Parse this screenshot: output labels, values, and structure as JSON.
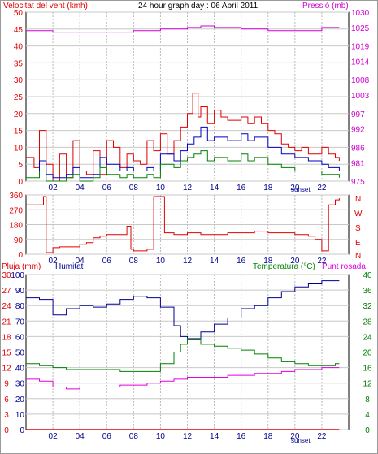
{
  "header": {
    "wind_label": "Velocitat del vent (kmh)",
    "title": "24 hour graph day : 06 Abril 2011",
    "pressure_label": "Pressió (mb)"
  },
  "labels": {
    "sunset": "sunset",
    "rain_label": "Pluja (mm)",
    "humidity_label": "Humitat",
    "temp_label": "Temperatura (°C)",
    "dew_label": "Punt rosada",
    "compass": [
      "N",
      "W",
      "S",
      "E",
      "N"
    ]
  },
  "colors": {
    "wind": "#e00000",
    "gust": "#e00000",
    "avg_wind": "#0000c0",
    "wind_green": "#008000",
    "pressure": "#d000d0",
    "direction": "#e00000",
    "humidity": "#000090",
    "temperature": "#008000",
    "dew": "#e000e0",
    "rain": "#e00000",
    "grid": "#c8c8c8",
    "dashed_grid": "#b8b8b8"
  },
  "chart_data": [
    {
      "type": "line",
      "title": "24 hour graph day : 06 Abril 2011",
      "x_ticks": [
        "02",
        "04",
        "06",
        "08",
        "10",
        "12",
        "14",
        "16",
        "18",
        "20",
        "22"
      ],
      "y_left_label": "Velocitat del vent (kmh)",
      "y_left_ticks": [
        0,
        5,
        10,
        15,
        20,
        25,
        30,
        35,
        40,
        45,
        50
      ],
      "ylim_left": [
        0,
        50
      ],
      "y_right_label": "Pressió (mb)",
      "y_right_ticks": [
        975,
        981,
        986,
        992,
        997,
        1003,
        1008,
        1014,
        1019,
        1025,
        1030
      ],
      "ylim_right": [
        975,
        1030
      ],
      "series": [
        {
          "name": "gust",
          "axis": "left",
          "x": [
            0.0,
            0.6,
            1.0,
            1.5,
            2.0,
            2.5,
            3.0,
            3.5,
            4.0,
            4.5,
            5.0,
            5.5,
            6.0,
            6.5,
            7.0,
            7.5,
            8.0,
            8.5,
            9.0,
            9.5,
            10.0,
            10.5,
            11.0,
            11.5,
            12.0,
            12.4,
            12.8,
            13.0,
            13.5,
            14.0,
            14.5,
            15.0,
            15.5,
            16.0,
            16.5,
            17.0,
            17.5,
            18.0,
            18.5,
            19.0,
            19.5,
            20.0,
            20.5,
            21.0,
            21.5,
            22.0,
            22.5,
            23.0,
            23.3
          ],
          "values": [
            7,
            4,
            15,
            5,
            0,
            8,
            1,
            12,
            3,
            2,
            9,
            2,
            12,
            10,
            4,
            8,
            6,
            5,
            12,
            9,
            14,
            8,
            12,
            16,
            20,
            26,
            19,
            22,
            17,
            21,
            19,
            18,
            18,
            19,
            17,
            19,
            17,
            15,
            14,
            11,
            10,
            9,
            10,
            8,
            8,
            10,
            8,
            7,
            6
          ]
        },
        {
          "name": "average",
          "axis": "left",
          "x": [
            0.0,
            1.0,
            1.5,
            2.0,
            3.0,
            3.5,
            4.0,
            5.0,
            5.5,
            6.0,
            7.0,
            7.5,
            8.0,
            9.0,
            9.5,
            10.0,
            11.0,
            11.5,
            12.0,
            12.5,
            13.0,
            13.5,
            14.0,
            15.0,
            16.0,
            16.5,
            17.0,
            18.0,
            19.0,
            20.0,
            21.0,
            22.0,
            22.5,
            23.0,
            23.3
          ],
          "values": [
            3,
            6,
            2,
            1,
            2,
            4,
            1,
            2,
            7,
            5,
            3,
            4,
            3,
            4,
            3,
            8,
            6,
            9,
            11,
            13,
            16,
            12,
            13,
            12,
            14,
            12,
            13,
            10,
            8,
            7,
            6,
            5,
            4,
            4,
            3
          ]
        },
        {
          "name": "wind-green",
          "axis": "left",
          "x": [
            0.0,
            1.0,
            1.5,
            2.0,
            3.0,
            3.5,
            4.0,
            5.0,
            5.5,
            6.0,
            7.0,
            7.5,
            8.0,
            9.0,
            9.5,
            10.0,
            11.0,
            11.5,
            12.0,
            12.5,
            13.0,
            13.5,
            14.0,
            15.0,
            16.0,
            16.5,
            17.0,
            18.0,
            19.0,
            20.0,
            21.0,
            22.0,
            22.5,
            23.0,
            23.3
          ],
          "values": [
            1,
            3,
            0,
            0,
            1,
            2,
            0,
            1,
            4,
            2,
            1,
            2,
            1,
            2,
            1,
            5,
            4,
            6,
            7,
            8,
            9,
            6,
            7,
            6,
            8,
            6,
            7,
            5,
            4,
            3,
            3,
            2,
            2,
            2,
            1
          ]
        },
        {
          "name": "pressure",
          "axis": "right",
          "x": [
            0,
            2,
            4,
            6,
            8,
            10,
            12,
            13,
            14,
            16,
            18,
            20,
            22,
            23.3
          ],
          "values": [
            1024,
            1023.5,
            1023.5,
            1023.5,
            1024,
            1024.5,
            1025,
            1025.5,
            1025,
            1024.5,
            1024,
            1024,
            1025,
            1025
          ]
        }
      ]
    },
    {
      "type": "line",
      "x_ticks": [
        "02",
        "04",
        "06",
        "08",
        "10",
        "12",
        "14",
        "16",
        "18",
        "20",
        "22"
      ],
      "y_ticks": [
        0,
        90,
        180,
        270,
        360
      ],
      "ylim": [
        0,
        360
      ],
      "compass": [
        "N",
        "W",
        "S",
        "E",
        "N"
      ],
      "series": [
        {
          "name": "direction",
          "x": [
            0,
            1.3,
            1.5,
            2.0,
            2.5,
            3.0,
            4.0,
            4.5,
            5.0,
            5.5,
            6.0,
            6.5,
            7.5,
            7.8,
            8.0,
            8.5,
            9.0,
            9.5,
            10.0,
            10.3,
            11.0,
            12.0,
            13.0,
            14.0,
            15.0,
            16.0,
            17.0,
            18.0,
            19.0,
            20.0,
            21.0,
            21.5,
            22.0,
            22.5,
            23.0,
            23.3
          ],
          "values": [
            300,
            350,
            10,
            40,
            45,
            45,
            60,
            70,
            100,
            110,
            120,
            120,
            170,
            30,
            20,
            20,
            30,
            350,
            350,
            130,
            120,
            130,
            120,
            120,
            130,
            130,
            140,
            130,
            130,
            120,
            110,
            90,
            20,
            300,
            330,
            340
          ]
        }
      ]
    },
    {
      "type": "line",
      "x_ticks": [
        "02",
        "04",
        "06",
        "08",
        "10",
        "12",
        "14",
        "16",
        "18",
        "20",
        "22"
      ],
      "y_left_ticks": [
        0,
        3,
        6,
        9,
        12,
        15,
        18,
        21,
        24,
        27,
        30
      ],
      "ylim_left": [
        0,
        30
      ],
      "y_humidity_ticks": [
        0,
        10,
        20,
        30,
        40,
        50,
        60,
        70,
        80,
        90,
        100
      ],
      "ylim_humidity": [
        0,
        100
      ],
      "y_right_ticks": [
        0,
        4,
        8,
        12,
        16,
        20,
        24,
        28,
        32,
        36,
        40
      ],
      "ylim_right": [
        0,
        40
      ],
      "series": [
        {
          "name": "rain",
          "axis": "left",
          "x": [
            0,
            23.3
          ],
          "values": [
            0,
            0
          ]
        },
        {
          "name": "humidity",
          "axis": "humidity",
          "x": [
            0,
            1.0,
            2.0,
            3.0,
            4.0,
            5.0,
            6.0,
            7.0,
            8.0,
            9.0,
            10.0,
            11.0,
            11.5,
            12.0,
            13.0,
            14.0,
            15.0,
            16.0,
            17.0,
            18.0,
            19.0,
            20.0,
            21.0,
            22.0,
            23.0,
            23.3
          ],
          "values": [
            85,
            84,
            74,
            78,
            80,
            79,
            81,
            84,
            86,
            85,
            79,
            67,
            60,
            58,
            63,
            68,
            72,
            78,
            80,
            85,
            89,
            92,
            94,
            96,
            96,
            96
          ]
        },
        {
          "name": "temperature",
          "axis": "right",
          "x": [
            0,
            1.0,
            2.0,
            3.0,
            4.0,
            5.0,
            6.0,
            7.0,
            8.0,
            9.0,
            10.0,
            11.0,
            11.5,
            12.0,
            13.0,
            14.0,
            15.0,
            16.0,
            17.0,
            18.0,
            19.0,
            20.0,
            21.0,
            22.0,
            23.0,
            23.3
          ],
          "values": [
            17,
            16.5,
            16,
            15.5,
            15.5,
            15.5,
            15.5,
            15,
            15,
            15,
            17,
            20,
            22,
            23.5,
            22,
            21.5,
            21,
            20.5,
            19.5,
            18.5,
            17.5,
            17,
            16.5,
            16.5,
            17,
            17
          ]
        },
        {
          "name": "Punt rosada",
          "axis": "right",
          "x": [
            0,
            1.0,
            2.0,
            3.0,
            4.0,
            5.0,
            6.0,
            7.0,
            8.0,
            9.0,
            10.0,
            11.0,
            12.0,
            13.0,
            14.0,
            15.0,
            16.0,
            17.0,
            18.0,
            19.0,
            20.0,
            21.0,
            22.0,
            23.0,
            23.3
          ],
          "values": [
            13,
            12.5,
            11,
            10.5,
            11,
            11,
            11,
            11.5,
            11.5,
            12,
            12.5,
            13,
            13.5,
            13.5,
            13.5,
            14,
            14,
            14.5,
            14.5,
            15,
            15.5,
            15.5,
            16,
            16,
            16
          ]
        }
      ]
    }
  ]
}
